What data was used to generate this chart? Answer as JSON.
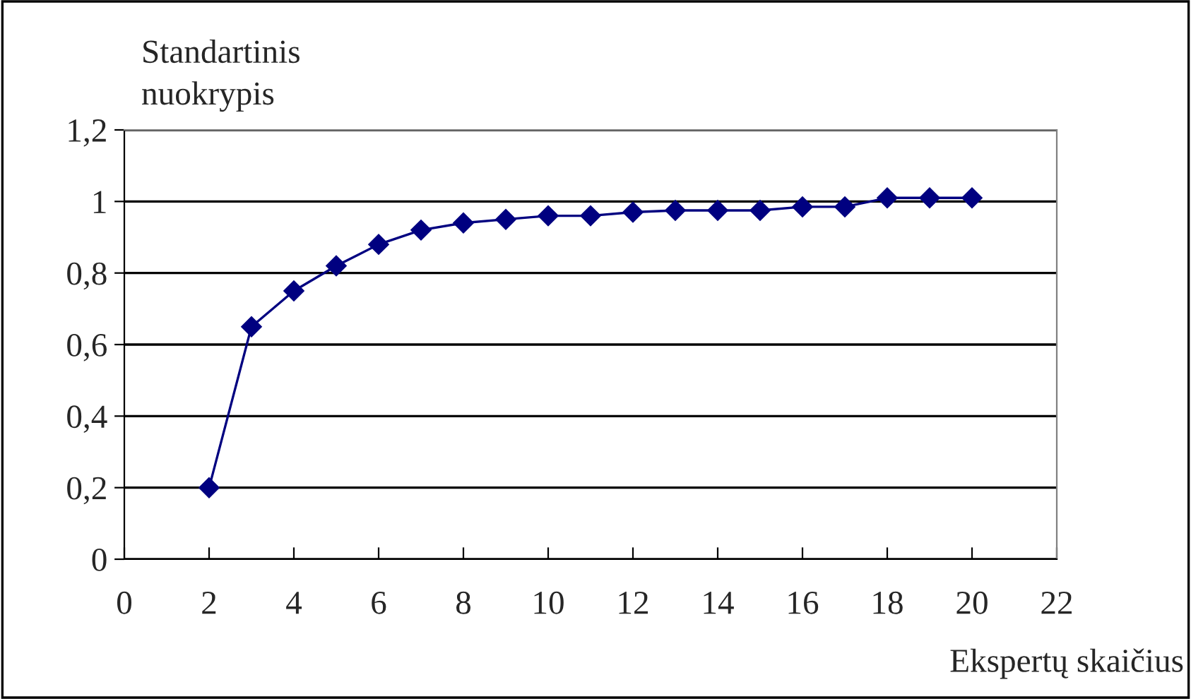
{
  "chart_data": {
    "type": "line",
    "xlabel": "Ekspertų skaičius",
    "ylabel": "Standartinis\nnuokrypis",
    "x": [
      2,
      3,
      4,
      5,
      6,
      7,
      8,
      9,
      10,
      11,
      12,
      13,
      14,
      15,
      16,
      17,
      18,
      19,
      20
    ],
    "series": [
      {
        "color": "#000080",
        "values": [
          0.2,
          0.65,
          0.75,
          0.82,
          0.88,
          0.92,
          0.94,
          0.95,
          0.96,
          0.96,
          0.97,
          0.975,
          0.975,
          0.975,
          0.985,
          0.985,
          1.01,
          1.01,
          1.01
        ]
      }
    ],
    "xlim": [
      0,
      22
    ],
    "xticks": [
      0,
      2,
      4,
      6,
      8,
      10,
      12,
      14,
      16,
      18,
      20,
      22
    ],
    "ylim": [
      0,
      1.2
    ],
    "yticks": [
      0,
      {
        "value": 0.2,
        "label": "0,2"
      },
      {
        "value": 0.4,
        "label": "0,4"
      },
      {
        "value": 0.6,
        "label": "0,6"
      },
      {
        "value": 0.8,
        "label": "0,8"
      },
      1,
      {
        "value": 1.2,
        "label": "1,2"
      }
    ],
    "grid": "y",
    "marker": "diamond",
    "line_style": "solid",
    "legend": false
  }
}
